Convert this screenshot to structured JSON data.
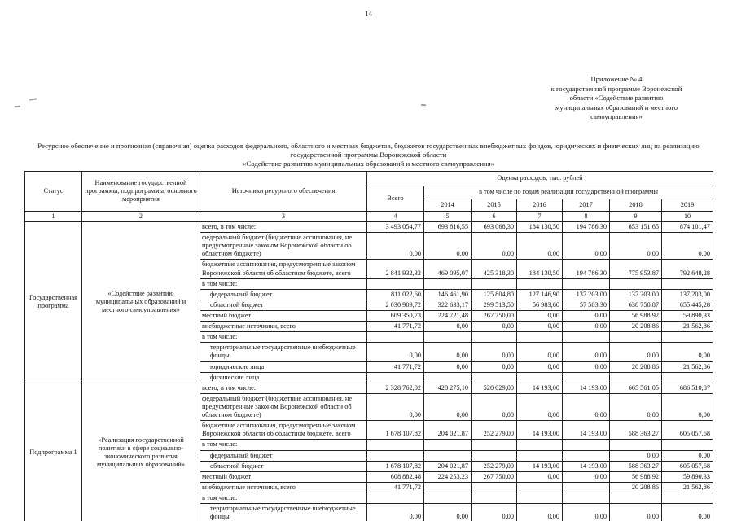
{
  "page": {
    "number": "14"
  },
  "appendix": {
    "lines": [
      "Приложение № 4",
      "к государственной программе Воронежской",
      "области «Содействие развитию",
      "муниципальных образований и местного",
      "самоуправления»"
    ]
  },
  "title": {
    "lines": [
      "Ресурсное обеспечение и прогнозная (справочная) оценка расходов федерального, областного и местных бюджетов, бюджетов государственных внебюджетных фондов, юридических и физических лиц на реализацию",
      "государственной программы Воронежской области",
      "«Содействие развитию муниципальных образований и местного самоуправления»"
    ]
  },
  "table": {
    "headers": {
      "status": "Статус",
      "program_name": "Наименование государственной программы, подпрограммы, основного мероприятия",
      "sources": "Источники ресурсного обеспечения",
      "expenses": "Оценка расходов, тыс. рублей",
      "total": "Всего",
      "by_years": "в том числе по годам реализации государственной программы",
      "years": [
        "2014",
        "2015",
        "2016",
        "2017",
        "2018",
        "2019"
      ],
      "col_numbers": [
        "1",
        "2",
        "3",
        "4",
        "5",
        "6",
        "7",
        "8",
        "9",
        "10"
      ]
    },
    "groups": [
      {
        "status": "Государственная программа",
        "name": "«Содействие развитию муниципальных образований и местного самоуправления»",
        "rows": [
          {
            "source": "всего, в том числе:",
            "indent": false,
            "values": [
              "3 493 054,77",
              "693 816,55",
              "693 068,30",
              "184 130,50",
              "194 786,30",
              "853 151,65",
              "874 101,47"
            ]
          },
          {
            "source": "федеральный бюджет (бюджетные ассигнования, не предусмотренные законом Воронежской области об областном бюджете)",
            "indent": false,
            "values": [
              "0,00",
              "0,00",
              "0,00",
              "0,00",
              "0,00",
              "0,00",
              "0,00"
            ]
          },
          {
            "source": "бюджетные ассигнования, предусмотренные законом Воронежской области об областном бюджете, всего",
            "indent": false,
            "values": [
              "2 841 932,32",
              "469 095,07",
              "425 318,30",
              "184 130,50",
              "194 786,30",
              "775 953,87",
              "792 648,28"
            ]
          },
          {
            "source": "в том числе:",
            "indent": false,
            "values": [
              "",
              "",
              "",
              "",
              "",
              "",
              ""
            ]
          },
          {
            "source": "федеральный бюджет",
            "indent": true,
            "values": [
              "811 022,60",
              "146 461,90",
              "125 804,80",
              "127 146,90",
              "137 203,00",
              "137 203,00",
              "137 203,00"
            ]
          },
          {
            "source": "областной бюджет",
            "indent": true,
            "values": [
              "2 030 909,72",
              "322 633,17",
              "299 513,50",
              "56 983,60",
              "57 583,30",
              "638 750,87",
              "655 445,28"
            ]
          },
          {
            "source": "местный бюджет",
            "indent": false,
            "values": [
              "609 350,73",
              "224 721,48",
              "267 750,00",
              "0,00",
              "0,00",
              "56 988,92",
              "59 890,33"
            ]
          },
          {
            "source": "внебюджетные источники, всего",
            "indent": false,
            "values": [
              "41 771,72",
              "0,00",
              "0,00",
              "0,00",
              "0,00",
              "20 208,86",
              "21 562,86"
            ]
          },
          {
            "source": "в том числе:",
            "indent": false,
            "values": [
              "",
              "",
              "",
              "",
              "",
              "",
              ""
            ]
          },
          {
            "source": "территориальные государственные внебюджетные фонды",
            "indent": true,
            "values": [
              "0,00",
              "0,00",
              "0,00",
              "0,00",
              "0,00",
              "0,00",
              "0,00"
            ]
          },
          {
            "source": "юридические лица",
            "indent": true,
            "values": [
              "41 771,72",
              "0,00",
              "0,00",
              "0,00",
              "0,00",
              "20 208,86",
              "21 562,86"
            ]
          },
          {
            "source": "физические лица",
            "indent": true,
            "values": [
              "",
              "",
              "",
              "",
              "",
              "",
              ""
            ]
          }
        ]
      },
      {
        "status": "Подпрограмма 1",
        "name": "«Реализация государственной политики в сфере социально-экономического развития муниципальных образований»",
        "rows": [
          {
            "source": "всего, в том числе:",
            "indent": false,
            "values": [
              "2 328 762,02",
              "428 275,10",
              "520 029,00",
              "14 193,00",
              "14 193,00",
              "665 561,05",
              "686 510,87"
            ]
          },
          {
            "source": "федеральный бюджет (бюджетные ассигнования, не предусмотренные законом Воронежской области об областном бюджете)",
            "indent": false,
            "values": [
              "0,00",
              "0,00",
              "0,00",
              "0,00",
              "0,00",
              "0,00",
              "0,00"
            ]
          },
          {
            "source": "бюджетные ассигнования, предусмотренные законом Воронежской области об областном бюджете, всего",
            "indent": false,
            "values": [
              "1 678 107,82",
              "204 021,87",
              "252 279,00",
              "14 193,00",
              "14 193,00",
              "588 363,27",
              "605 057,68"
            ]
          },
          {
            "source": "в том числе:",
            "indent": false,
            "values": [
              "",
              "",
              "",
              "",
              "",
              "",
              ""
            ]
          },
          {
            "source": "федеральный бюджет",
            "indent": true,
            "values": [
              "",
              "",
              "",
              "",
              "",
              "0,00",
              "0,00"
            ]
          },
          {
            "source": "областной бюджет",
            "indent": true,
            "values": [
              "1 678 107,82",
              "204 021,87",
              "252 279,00",
              "14 193,00",
              "14 193,00",
              "588 363,27",
              "605 057,68"
            ]
          },
          {
            "source": "местный бюджет",
            "indent": false,
            "values": [
              "608 882,48",
              "224 253,23",
              "267 750,00",
              "0,00",
              "0,00",
              "56 988,92",
              "59 890,33"
            ]
          },
          {
            "source": "внебюджетные источники, всего",
            "indent": false,
            "values": [
              "41 771,72",
              "",
              "",
              "",
              "",
              "20 208,86",
              "21 562,86"
            ]
          },
          {
            "source": "в том числе:",
            "indent": false,
            "values": [
              "",
              "",
              "",
              "",
              "",
              "",
              ""
            ]
          },
          {
            "source": "территориальные государственные внебюджетные фонды",
            "indent": true,
            "values": [
              "0,00",
              "0,00",
              "0,00",
              "0,00",
              "0,00",
              "0,00",
              "0,00"
            ]
          }
        ]
      }
    ]
  }
}
